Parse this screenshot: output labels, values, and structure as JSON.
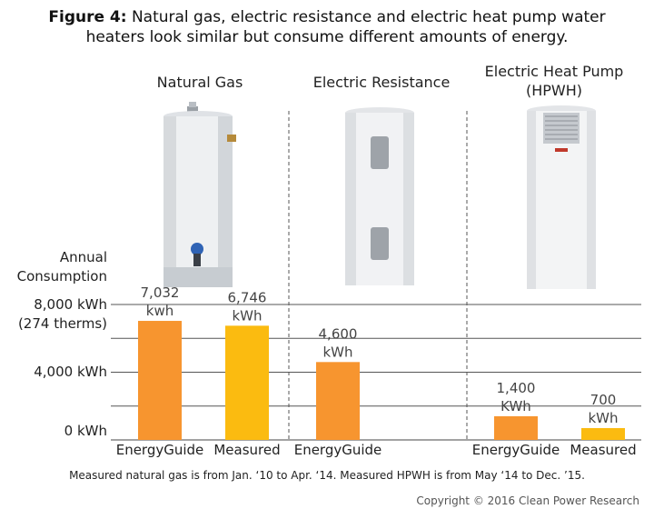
{
  "title": {
    "lead": "Figure 4:",
    "text": "Natural gas, electric resistance and electric heat pump water heaters look similar but consume different amounts of energy."
  },
  "heaters": [
    {
      "name": "Natural Gas",
      "icon": "gas-water-heater-icon"
    },
    {
      "name": "Electric Resistance",
      "icon": "electric-water-heater-icon"
    },
    {
      "name": "Electric Heat Pump (HPWH)",
      "icon": "heat-pump-water-heater-icon"
    }
  ],
  "chart_data": {
    "type": "bar",
    "ylabel": "Annual Consumption",
    "ylim": [
      0,
      8000
    ],
    "ticks": [
      {
        "value": 8000,
        "label": "8,000 kWh",
        "sublabel": "(274 therms)"
      },
      {
        "value": 4000,
        "label": "4,000 kWh",
        "sublabel": ""
      },
      {
        "value": 0,
        "label": "0 kWh",
        "sublabel": ""
      }
    ],
    "grid_values": [
      8000,
      6000,
      4000,
      2000,
      0
    ],
    "bars": [
      {
        "group": "Natural Gas",
        "category": "EnergyGuide",
        "value": 7032,
        "label": "7,032",
        "unit": "kwh",
        "color": "#F7952F"
      },
      {
        "group": "Natural Gas",
        "category": "Measured",
        "value": 6746,
        "label": "6,746",
        "unit": "kWh",
        "color": "#FBBB10"
      },
      {
        "group": "Electric Resistance",
        "category": "EnergyGuide",
        "value": 4600,
        "label": "4,600",
        "unit": "kWh",
        "color": "#F7952F"
      },
      {
        "group": "Electric Heat Pump (HPWH)",
        "category": "EnergyGuide",
        "value": 1400,
        "label": "1,400",
        "unit": "KWh",
        "color": "#F7952F"
      },
      {
        "group": "Electric Heat Pump (HPWH)",
        "category": "Measured",
        "value": 700,
        "label": "700",
        "unit": "kWh",
        "color": "#FBBB10"
      }
    ]
  },
  "footnote": "Measured natural gas is from Jan. ‘10 to Apr. ‘14. Measured HPWH is from May ‘14 to Dec. ’15.",
  "copyright": "Copyright © 2016 Clean Power Research"
}
